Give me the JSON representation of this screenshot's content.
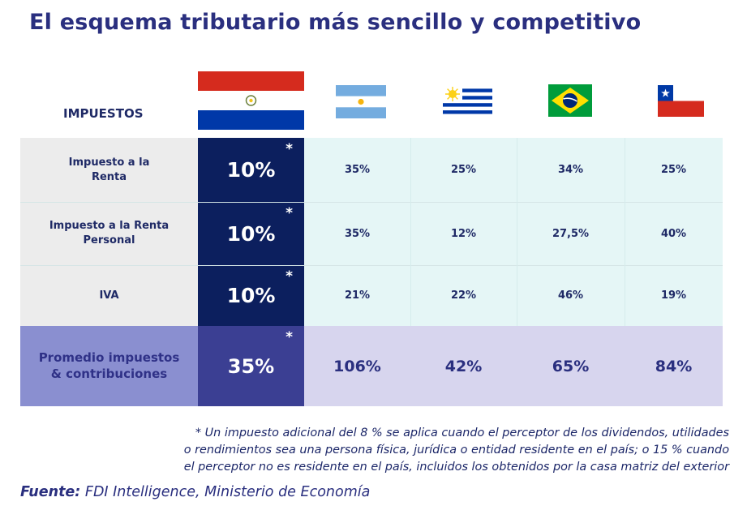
{
  "title": "El esquema tributario más sencillo y competitivo",
  "header": {
    "label": "IMPUESTOS",
    "flags": [
      {
        "name": "paraguay-flag-icon",
        "colors": [
          "#d52b1e",
          "#ffffff",
          "#0038a8"
        ]
      },
      {
        "name": "argentina-flag-icon",
        "colors": [
          "#74acdf",
          "#ffffff",
          "#f6b40e"
        ]
      },
      {
        "name": "uruguay-flag-icon",
        "colors": [
          "#0038a8",
          "#ffffff",
          "#fcd116"
        ]
      },
      {
        "name": "brazil-flag-icon",
        "colors": [
          "#009c3b",
          "#ffdf00",
          "#002776"
        ]
      },
      {
        "name": "chile-flag-icon",
        "colors": [
          "#d52b1e",
          "#ffffff",
          "#0039a6"
        ]
      }
    ]
  },
  "rows": [
    {
      "label": "Impuesto a la\nRenta",
      "paraguay": "10%",
      "asterisk": "*",
      "values": [
        "35%",
        "25%",
        "34%",
        "25%"
      ]
    },
    {
      "label": "Impuesto a la Renta\nPersonal",
      "paraguay": "10%",
      "asterisk": "*",
      "values": [
        "35%",
        "12%",
        "27,5%",
        "40%"
      ]
    },
    {
      "label": "IVA",
      "paraguay": "10%",
      "asterisk": "*",
      "values": [
        "21%",
        "22%",
        "46%",
        "19%"
      ]
    }
  ],
  "average": {
    "label": "Promedio impuestos\n& contribuciones",
    "paraguay": "35%",
    "asterisk": "*",
    "values": [
      "106%",
      "42%",
      "65%",
      "84%"
    ]
  },
  "footnote": {
    "lines": [
      "* Un impuesto adicional del 8 % se aplica cuando el perceptor de los dividendos, utilidades",
      "o rendimientos sea una persona física, jurídica o entidad residente en el país; o 15 % cuando",
      "el perceptor no es residente en el país, incluidos los obtenidos por la casa matriz del exterior"
    ]
  },
  "source": {
    "key": "Fuente:",
    "text": " FDI Intelligence, Ministerio de Economía"
  },
  "colors": {
    "title": "#2a2f7f",
    "paraguay_column": "#0c1f5e",
    "row_label_bg": "#ececec",
    "value_bg": "#e5f6f6",
    "average_label_bg": "#8a8fd0",
    "average_paraguay_bg": "#3b3f93",
    "average_value_bg": "#d7d5ee"
  }
}
